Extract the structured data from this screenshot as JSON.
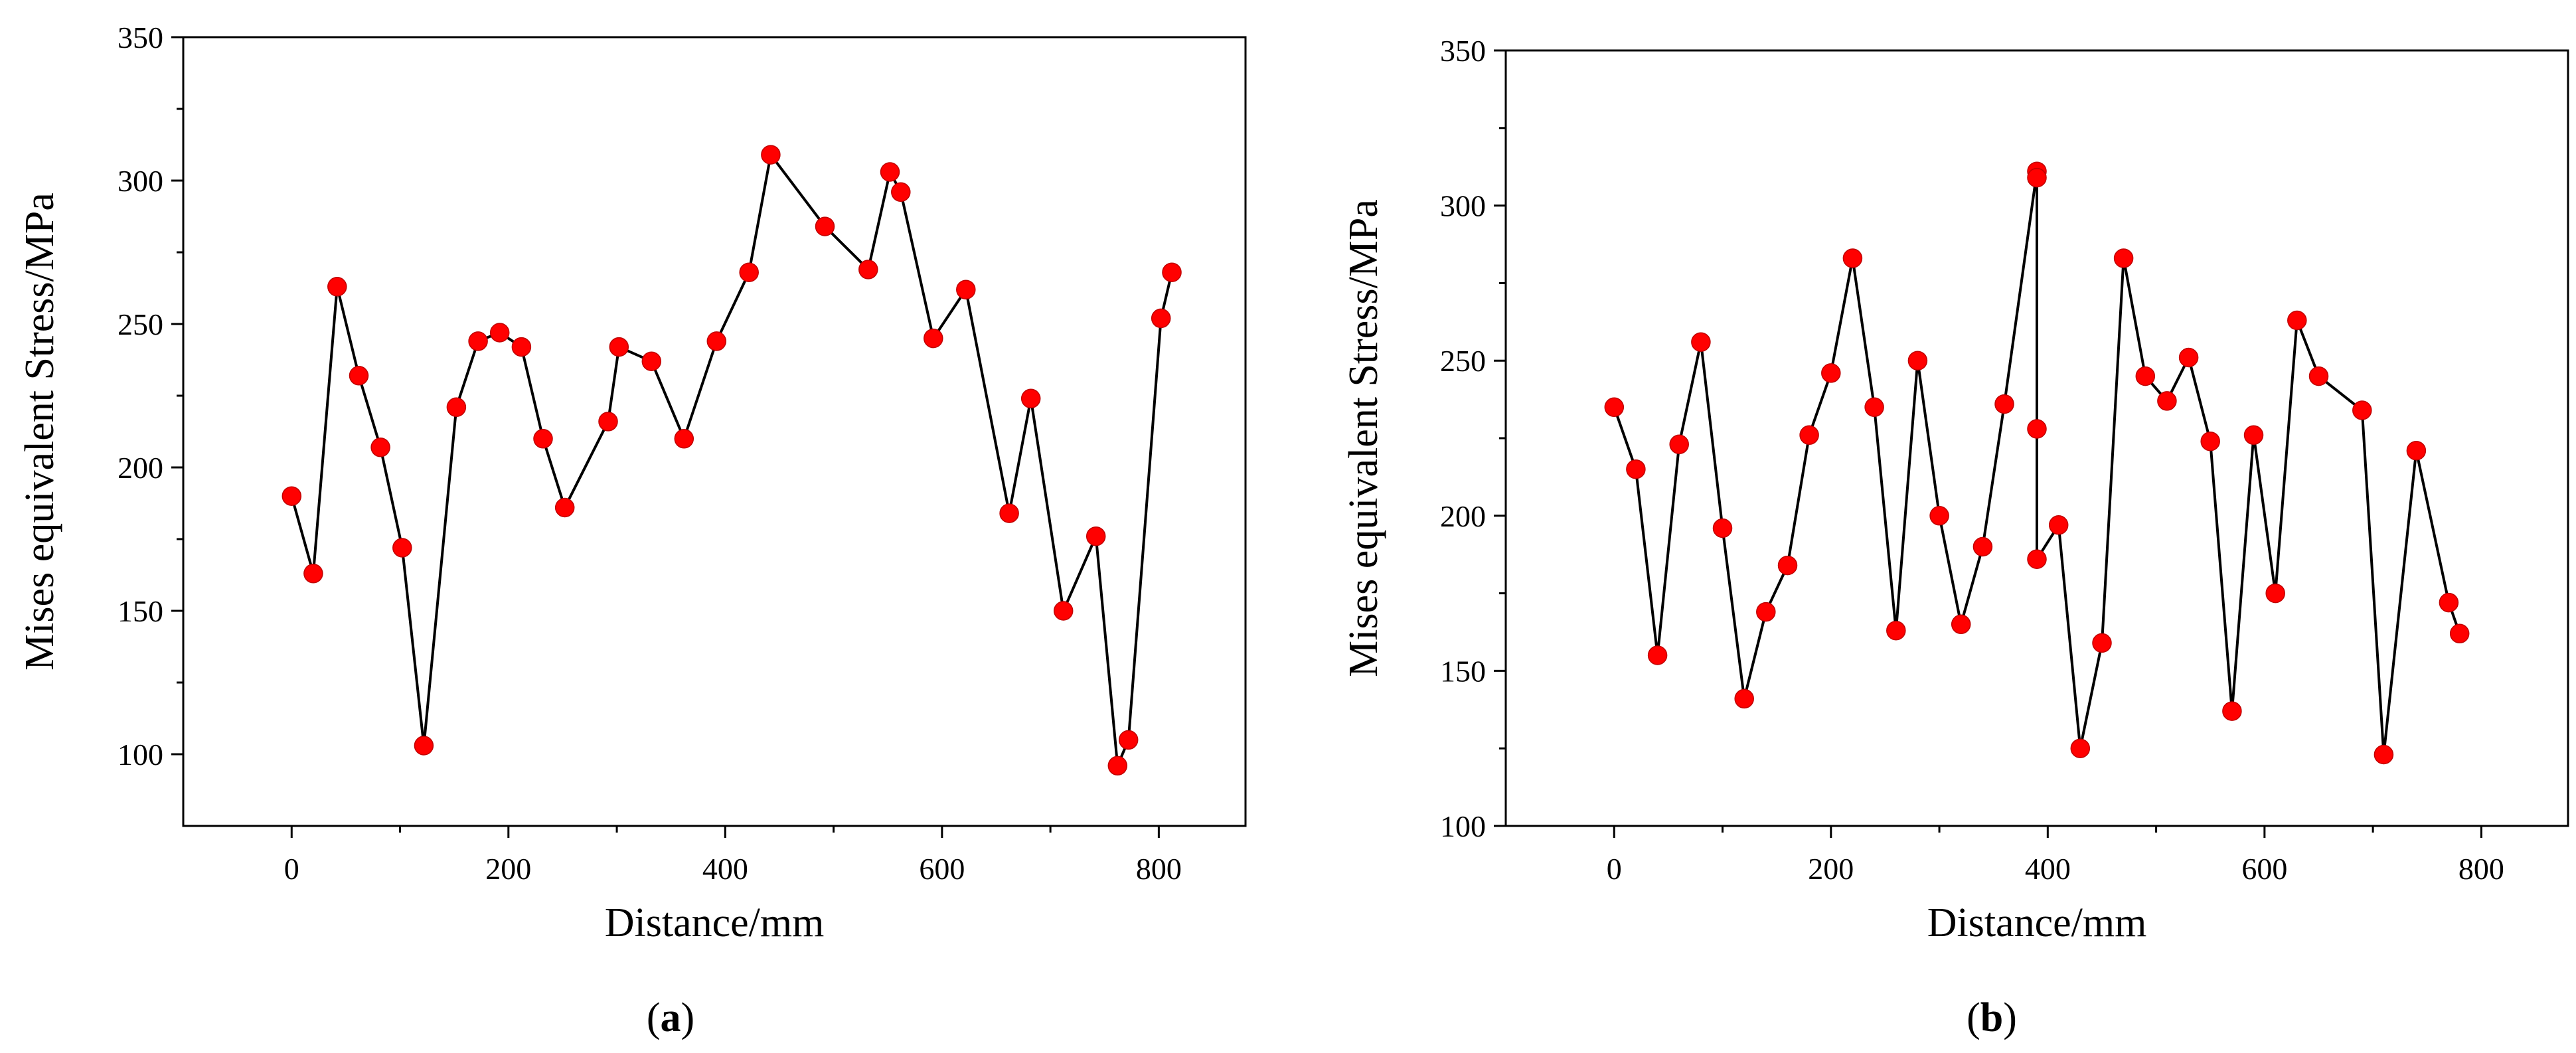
{
  "chart_data": [
    {
      "type": "line",
      "panel_label": "a",
      "xlabel": "Distance/mm",
      "ylabel": "Mises equivalent Stress/MPa",
      "xlim": [
        -100,
        880
      ],
      "ylim": [
        75,
        350
      ],
      "xticks": [
        0,
        200,
        400,
        600,
        800
      ],
      "yticks": [
        100,
        150,
        200,
        250,
        300,
        350
      ],
      "marker_color": "#ff0000",
      "line_color": "#000000",
      "series": [
        {
          "name": "",
          "x": [
            0,
            20,
            42,
            62,
            82,
            102,
            122,
            152,
            172,
            192,
            212,
            232,
            252,
            292,
            302,
            332,
            362,
            392,
            422,
            442,
            492,
            532,
            552,
            562,
            592,
            622,
            662,
            682,
            712,
            742,
            762,
            772,
            802,
            812
          ],
          "y": [
            190,
            163,
            263,
            232,
            207,
            172,
            103,
            221,
            244,
            247,
            242,
            210,
            186,
            216,
            242,
            237,
            210,
            244,
            268,
            309,
            284,
            269,
            303,
            296,
            245,
            262,
            184,
            224,
            150,
            176,
            96,
            105,
            252,
            268
          ]
        }
      ]
    },
    {
      "type": "line",
      "panel_label": "b",
      "xlabel": "Distance/mm",
      "ylabel": "Mises equivalent Stress/MPa",
      "xlim": [
        -100,
        880
      ],
      "ylim": [
        100,
        350
      ],
      "xticks": [
        0,
        200,
        400,
        600,
        800
      ],
      "yticks": [
        100,
        150,
        200,
        250,
        300,
        350
      ],
      "marker_color": "#ff0000",
      "line_color": "#000000",
      "series": [
        {
          "name": "",
          "x": [
            0,
            20,
            40,
            60,
            80,
            100,
            120,
            140,
            160,
            180,
            200,
            220,
            240,
            260,
            280,
            300,
            320,
            340,
            360,
            390,
            390,
            390,
            390,
            410,
            430,
            450,
            470,
            490,
            510,
            530,
            550,
            570,
            590,
            610,
            630,
            650,
            690,
            710,
            740,
            770,
            780
          ],
          "y": [
            235,
            215,
            155,
            223,
            256,
            196,
            141,
            169,
            184,
            226,
            246,
            283,
            235,
            163,
            250,
            200,
            165,
            190,
            236,
            311,
            309,
            228,
            186,
            197,
            125,
            159,
            283,
            245,
            237,
            251,
            224,
            137,
            226,
            175,
            263,
            245,
            234,
            123,
            221,
            172,
            162
          ]
        }
      ]
    }
  ]
}
